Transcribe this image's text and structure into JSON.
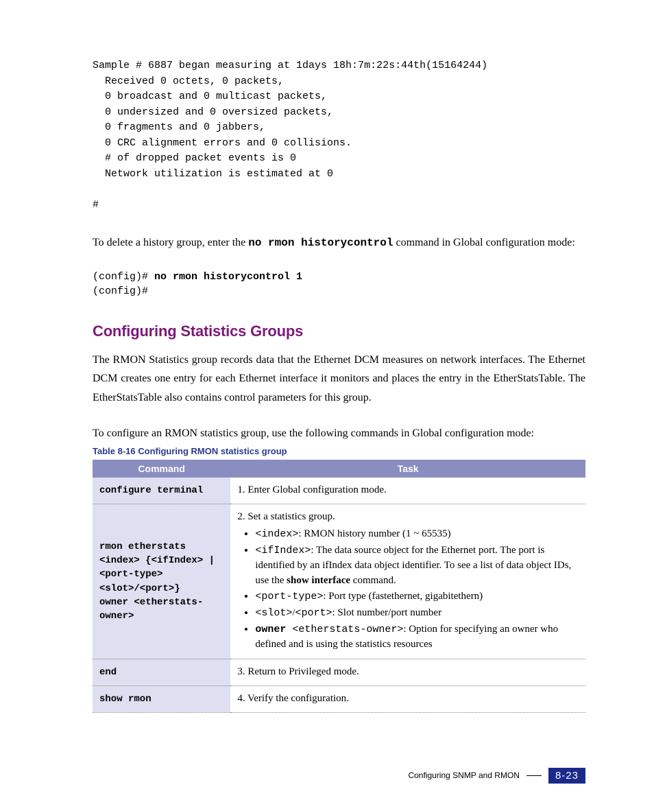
{
  "colors": {
    "heading": "#7a1a7a",
    "caption": "#2a3a8f",
    "th_bg_left": "#8a8dc0",
    "th_bg_right": "#8a8dc0",
    "td_left_bg": "#dedff0",
    "page_badge_bg": "#1a2a8a"
  },
  "code_sample": "Sample # 6887 began measuring at 1days 18h:7m:22s:44th(15164244)\n  Received 0 octets, 0 packets,\n  0 broadcast and 0 multicast packets,\n  0 undersized and 0 oversized packets,\n  0 fragments and 0 jabbers,\n  0 CRC alignment errors and 0 collisions.\n  # of dropped packet events is 0\n  Network utilization is estimated at 0\n\n#",
  "para1_pre": "To delete a history group, enter the ",
  "para1_cmd": "no rmon historycontrol",
  "para1_post": " command in Global configuration mode:",
  "cmd_block_l1a": "(config)# ",
  "cmd_block_l1b": "no rmon historycontrol 1",
  "cmd_block_l2": "(config)#",
  "section_heading": "Configuring Statistics Groups",
  "para2": "The RMON Statistics group records data that the Ethernet DCM measures on network interfaces. The Ethernet DCM creates one entry for each Ethernet interface it monitors and places the entry in the EtherStatsTable. The EtherStatsTable also contains control parameters for this group.",
  "para3": "To configure an RMON statistics group, use the following commands in Global configuration mode:",
  "table": {
    "caption_prefix": "Table 8-16   ",
    "caption_title": "Configuring RMON statistics group",
    "col_widths": [
      "28%",
      "72%"
    ],
    "headers": [
      "Command",
      "Task"
    ],
    "rows": [
      {
        "cmd": "configure terminal",
        "task_lead": "1.   Enter Global configuration mode."
      },
      {
        "cmd_lines": [
          "rmon etherstats",
          "<index> {<ifIndex> |",
          "<port-type>",
          "<slot>/<port>}",
          "owner <etherstats-",
          "owner>"
        ],
        "task_lead": "2. Set a statistics group.",
        "bullets": [
          {
            "mono": "<index>",
            "text": ": RMON history number (1 ~ 65535)"
          },
          {
            "mono": "<ifIndex>",
            "text": ": The data source object for the Ethernet port. The port is identified by an ifIndex data object identifier. To see a list of data object IDs, use the ",
            "bold": "show interface",
            "tail": " command."
          },
          {
            "mono": "<port-type>",
            "text": ": Port type (fastethernet, gigabitethern)"
          },
          {
            "mono": "<slot>",
            "mid": "/",
            "mono2": "<port>",
            "text": ": Slot number/port number"
          },
          {
            "bold_mono": "owner ",
            "mono": "<etherstats-owner>",
            "text": ": Option for specifying an owner who defined and is using the statistics resources"
          }
        ]
      },
      {
        "cmd": "end",
        "task_lead": "3. Return to Privileged mode."
      },
      {
        "cmd": "show rmon",
        "task_lead": "4. Verify the configuration."
      }
    ]
  },
  "footer": {
    "label": "Configuring SNMP and RMON",
    "page": "8-23"
  }
}
